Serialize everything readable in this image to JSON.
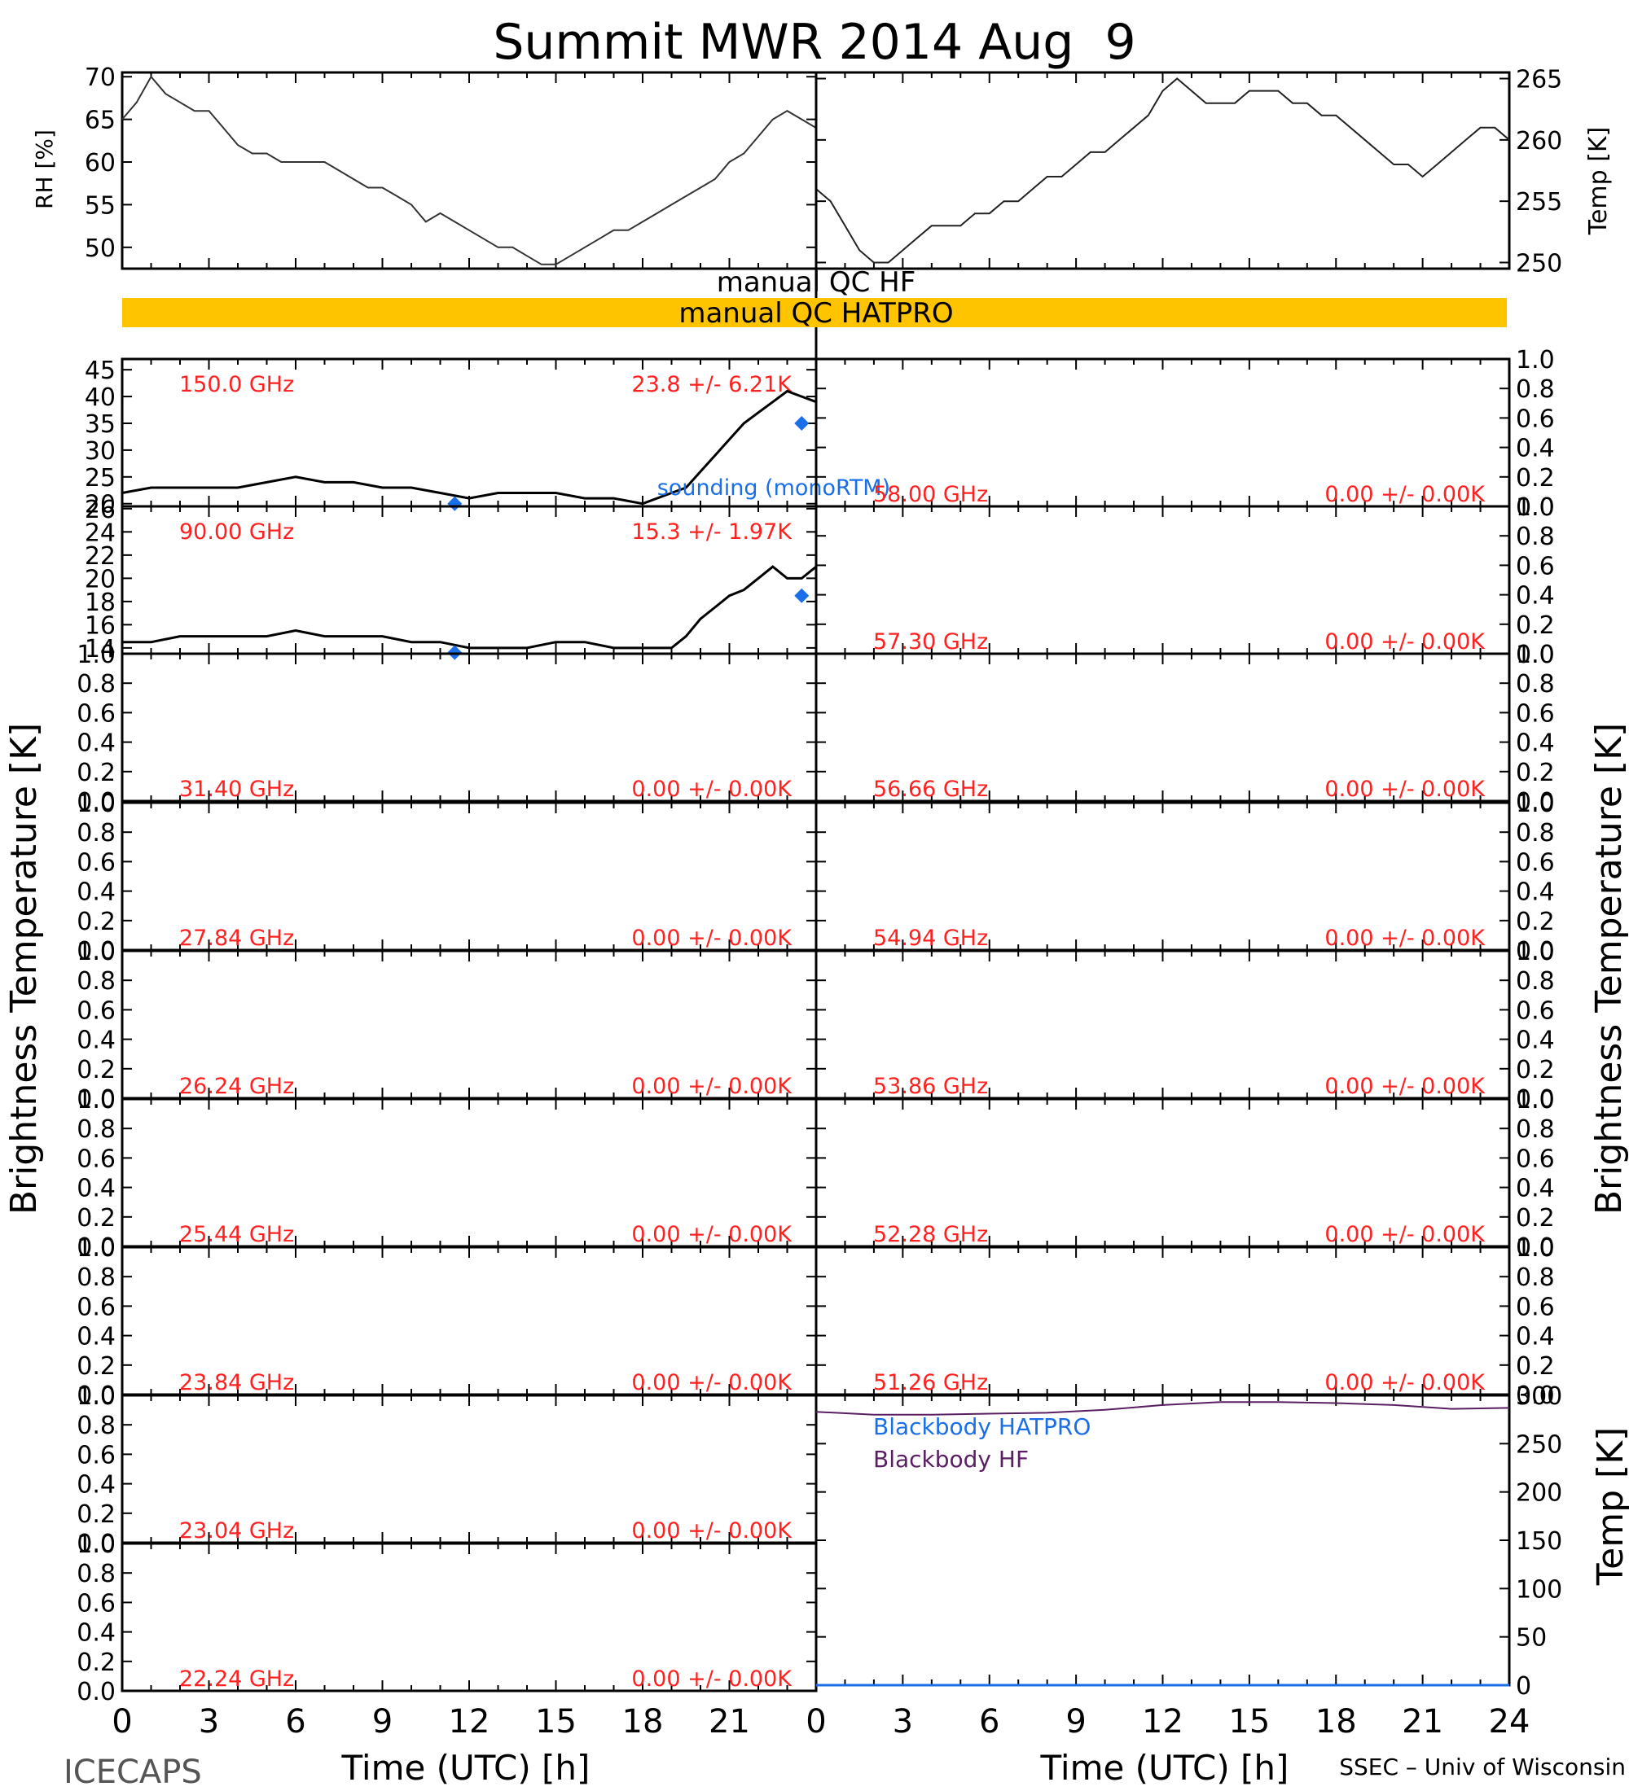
{
  "title": "Summit MWR 2014 Aug  9",
  "footer": {
    "left": "ICECAPS",
    "right": "SSEC – Univ of Wisconsin"
  },
  "colors": {
    "axis": "#000000",
    "channel_label": "#ff2020",
    "sounding": "#1a6fe8",
    "qc_bar": "#ffc400",
    "bb_hf": "#5a1f63",
    "bb_hatpro": "#1a6fe8"
  },
  "qc": {
    "hf_label": "manual QC HF",
    "hatpro_label": "manual QC HATPRO"
  },
  "x_axis": {
    "label": "Time (UTC) [h]",
    "range": [
      0,
      24
    ],
    "ticks": [
      "0",
      "3",
      "6",
      "9",
      "12",
      "15",
      "18",
      "21",
      "24"
    ],
    "zero_label": "0"
  },
  "y_titles": {
    "left": "Brightness Temperature [K]",
    "right": "Brightness Temperature [K]",
    "rh": "RH [%]",
    "temp": "Temp [K]",
    "bb_temp": "Temp [K]"
  },
  "chart_data": [
    {
      "type": "line",
      "name": "rh",
      "ylabel": "RH [%]",
      "ylim": [
        47.5,
        70.5
      ],
      "yticks": [
        "50",
        "55",
        "60",
        "65",
        "70"
      ],
      "x": [
        0,
        0.5,
        1,
        1.5,
        2,
        2.5,
        3,
        3.5,
        4,
        4.5,
        5,
        5.5,
        6,
        6.5,
        7,
        7.5,
        8,
        8.5,
        9,
        9.5,
        10,
        10.5,
        11,
        11.5,
        12,
        12.5,
        13,
        13.5,
        14,
        14.5,
        15,
        15.5,
        16,
        16.5,
        17,
        17.5,
        18,
        18.5,
        19,
        19.5,
        20,
        20.5,
        21,
        21.5,
        22,
        22.5,
        23,
        23.5,
        24
      ],
      "values": [
        65,
        67,
        70,
        68,
        67,
        66,
        66,
        64,
        62,
        61,
        61,
        60,
        60,
        60,
        60,
        59,
        58,
        57,
        57,
        56,
        55,
        53,
        54,
        53,
        52,
        51,
        50,
        50,
        49,
        48,
        48,
        49,
        50,
        51,
        52,
        52,
        53,
        54,
        55,
        56,
        57,
        58,
        60,
        61,
        63,
        65,
        66,
        65,
        64
      ]
    },
    {
      "type": "line",
      "name": "temp",
      "ylabel": "Temp [K]",
      "ylim": [
        249.5,
        265.5
      ],
      "yticks": [
        "250",
        "255",
        "260",
        "265"
      ],
      "x": [
        0,
        0.5,
        1,
        1.5,
        2,
        2.5,
        3,
        3.5,
        4,
        4.5,
        5,
        5.5,
        6,
        6.5,
        7,
        7.5,
        8,
        8.5,
        9,
        9.5,
        10,
        10.5,
        11,
        11.5,
        12,
        12.5,
        13,
        13.5,
        14,
        14.5,
        15,
        15.5,
        16,
        16.5,
        17,
        17.5,
        18,
        18.5,
        19,
        19.5,
        20,
        20.5,
        21,
        21.5,
        22,
        22.5,
        23,
        23.5,
        24
      ],
      "values": [
        256,
        255,
        253,
        251,
        250,
        250,
        251,
        252,
        253,
        253,
        253,
        254,
        254,
        255,
        255,
        256,
        257,
        257,
        258,
        259,
        259,
        260,
        261,
        262,
        264,
        265,
        264,
        263,
        263,
        263,
        264,
        264,
        264,
        263,
        263,
        262,
        262,
        261,
        260,
        259,
        258,
        258,
        257,
        258,
        259,
        260,
        261,
        261,
        260
      ]
    },
    {
      "type": "line",
      "channel": "150.0 GHz",
      "stats": "23.8 +/-  6.21K",
      "ylim": [
        19.5,
        47
      ],
      "yticks": [
        "20",
        "25",
        "30",
        "35",
        "40",
        "45"
      ],
      "x": [
        0,
        1,
        2,
        3,
        4,
        5,
        6,
        7,
        8,
        9,
        10,
        11,
        12,
        13,
        14,
        15,
        16,
        17,
        18,
        19,
        19.5,
        20,
        20.5,
        21,
        21.5,
        22,
        22.5,
        23,
        23.5,
        24
      ],
      "values": [
        22,
        23,
        23,
        23,
        23,
        24,
        25,
        24,
        24,
        23,
        23,
        22,
        21,
        22,
        22,
        22,
        21,
        21,
        20,
        22,
        23,
        26,
        29,
        32,
        35,
        37,
        39,
        41,
        40,
        39
      ],
      "sounding": {
        "label": "sounding (monoRTM)",
        "points": [
          [
            11.5,
            20
          ],
          [
            23.5,
            35
          ]
        ]
      }
    },
    {
      "type": "line",
      "channel": "90.00 GHz",
      "stats": "15.3 +/-  1.97K",
      "ylim": [
        13.5,
        26.2
      ],
      "yticks": [
        "14",
        "16",
        "18",
        "20",
        "22",
        "24",
        "26"
      ],
      "x": [
        0,
        1,
        2,
        3,
        4,
        5,
        6,
        7,
        8,
        9,
        10,
        11,
        12,
        13,
        14,
        15,
        16,
        17,
        18,
        19,
        19.5,
        20,
        20.5,
        21,
        21.5,
        22,
        22.5,
        23,
        23.5,
        24
      ],
      "values": [
        14.5,
        14.5,
        15,
        15,
        15,
        15,
        15.5,
        15,
        15,
        15,
        14.5,
        14.5,
        14,
        14,
        14,
        14.5,
        14.5,
        14,
        14,
        14,
        15,
        16.5,
        17.5,
        18.5,
        19,
        20,
        21,
        20,
        20,
        21
      ],
      "sounding": {
        "points": [
          [
            11.5,
            13.6
          ],
          [
            23.5,
            18.5
          ]
        ]
      }
    },
    {
      "type": "line",
      "channel": "31.40 GHz",
      "stats": "0.00 +/-  0.00K",
      "ylim": [
        0,
        1
      ],
      "yticks": [
        "0.0",
        "0.2",
        "0.4",
        "0.6",
        "0.8",
        "1.0"
      ],
      "x": [],
      "values": []
    },
    {
      "type": "line",
      "channel": "27.84 GHz",
      "stats": "0.00 +/-  0.00K",
      "ylim": [
        0,
        1
      ],
      "yticks": [
        "0.0",
        "0.2",
        "0.4",
        "0.6",
        "0.8",
        "1.0"
      ],
      "x": [],
      "values": []
    },
    {
      "type": "line",
      "channel": "26.24 GHz",
      "stats": "0.00 +/-  0.00K",
      "ylim": [
        0,
        1
      ],
      "yticks": [
        "0.0",
        "0.2",
        "0.4",
        "0.6",
        "0.8",
        "1.0"
      ],
      "x": [],
      "values": []
    },
    {
      "type": "line",
      "channel": "25.44 GHz",
      "stats": "0.00 +/-  0.00K",
      "ylim": [
        0,
        1
      ],
      "yticks": [
        "0.0",
        "0.2",
        "0.4",
        "0.6",
        "0.8",
        "1.0"
      ],
      "x": [],
      "values": []
    },
    {
      "type": "line",
      "channel": "23.84 GHz",
      "stats": "0.00 +/-  0.00K",
      "ylim": [
        0,
        1
      ],
      "yticks": [
        "0.0",
        "0.2",
        "0.4",
        "0.6",
        "0.8",
        "1.0"
      ],
      "x": [],
      "values": []
    },
    {
      "type": "line",
      "channel": "23.04 GHz",
      "stats": "0.00 +/-  0.00K",
      "ylim": [
        0,
        1
      ],
      "yticks": [
        "0.0",
        "0.2",
        "0.4",
        "0.6",
        "0.8",
        "1.0"
      ],
      "x": [],
      "values": []
    },
    {
      "type": "line",
      "channel": "22.24 GHz",
      "stats": "0.00 +/-  0.00K",
      "ylim": [
        0,
        1
      ],
      "yticks": [
        "0.0",
        "0.2",
        "0.4",
        "0.6",
        "0.8",
        "1.0"
      ],
      "x": [],
      "values": []
    },
    {
      "type": "line",
      "channel": "58.00 GHz",
      "stats": "0.00 +/-  0.00K",
      "ylim": [
        0,
        1
      ],
      "yticks": [
        "0.0",
        "0.2",
        "0.4",
        "0.6",
        "0.8",
        "1.0"
      ],
      "x": [],
      "values": []
    },
    {
      "type": "line",
      "channel": "57.30 GHz",
      "stats": "0.00 +/-  0.00K",
      "ylim": [
        0,
        1
      ],
      "yticks": [
        "0.0",
        "0.2",
        "0.4",
        "0.6",
        "0.8",
        "1.0"
      ],
      "x": [],
      "values": []
    },
    {
      "type": "line",
      "channel": "56.66 GHz",
      "stats": "0.00 +/-  0.00K",
      "ylim": [
        0,
        1
      ],
      "yticks": [
        "0.0",
        "0.2",
        "0.4",
        "0.6",
        "0.8",
        "1.0"
      ],
      "x": [],
      "values": []
    },
    {
      "type": "line",
      "channel": "54.94 GHz",
      "stats": "0.00 +/-  0.00K",
      "ylim": [
        0,
        1
      ],
      "yticks": [
        "0.0",
        "0.2",
        "0.4",
        "0.6",
        "0.8",
        "1.0"
      ],
      "x": [],
      "values": []
    },
    {
      "type": "line",
      "channel": "53.86 GHz",
      "stats": "0.00 +/-  0.00K",
      "ylim": [
        0,
        1
      ],
      "yticks": [
        "0.0",
        "0.2",
        "0.4",
        "0.6",
        "0.8",
        "1.0"
      ],
      "x": [],
      "values": []
    },
    {
      "type": "line",
      "channel": "52.28 GHz",
      "stats": "0.00 +/-  0.00K",
      "ylim": [
        0,
        1
      ],
      "yticks": [
        "0.0",
        "0.2",
        "0.4",
        "0.6",
        "0.8",
        "1.0"
      ],
      "x": [],
      "values": []
    },
    {
      "type": "line",
      "channel": "51.26 GHz",
      "stats": "0.00 +/-  0.00K",
      "ylim": [
        0,
        1
      ],
      "yticks": [
        "0.0",
        "0.2",
        "0.4",
        "0.6",
        "0.8",
        "1.0"
      ],
      "x": [],
      "values": []
    },
    {
      "type": "line",
      "name": "blackbody",
      "ylabel": "Temp [K]",
      "ylim": [
        0,
        300
      ],
      "yticks": [
        "0",
        "50",
        "100",
        "150",
        "200",
        "250",
        "300"
      ],
      "series": [
        {
          "name": "Blackbody HATPRO",
          "x": [
            0,
            24
          ],
          "values": [
            0,
            0
          ]
        },
        {
          "name": "Blackbody HF",
          "x": [
            0,
            2,
            4,
            6,
            8,
            10,
            12,
            14,
            16,
            18,
            20,
            22,
            24
          ],
          "values": [
            283,
            280,
            280,
            281,
            282,
            285,
            290,
            293,
            293,
            292,
            290,
            286,
            287
          ]
        }
      ]
    }
  ]
}
